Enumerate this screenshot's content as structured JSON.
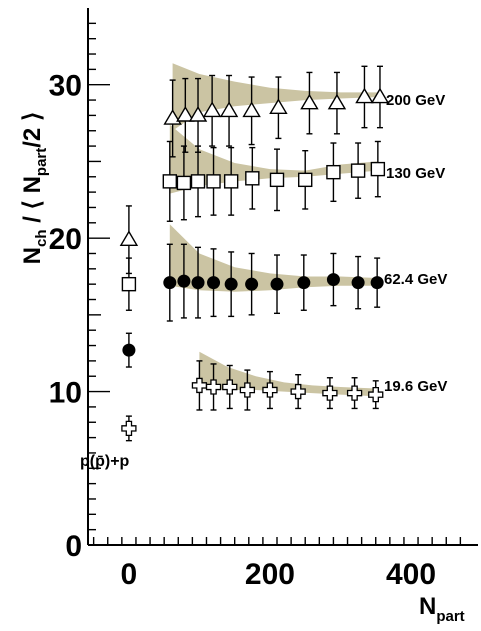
{
  "chart_data": {
    "type": "scatter",
    "xlabel": "N_part",
    "ylabel": "N_ch / ⟨ N_part/2 ⟩",
    "xlim": [
      -58,
      495
    ],
    "ylim": [
      0,
      35
    ],
    "x_ticks": [
      0,
      200,
      400
    ],
    "y_ticks": [
      0,
      10,
      20,
      30
    ],
    "grid": false,
    "band_color": "#cbc4a3",
    "series": [
      {
        "name": "200 GeV",
        "marker": "open-triangle",
        "x": [
          62,
          80,
          98,
          118,
          142,
          174,
          212,
          256,
          295,
          334,
          356
        ],
        "y": [
          27.8,
          28.0,
          28.0,
          28.3,
          28.3,
          28.3,
          28.5,
          28.8,
          28.8,
          29.2,
          29.2
        ],
        "yerr": [
          2.5,
          2.4,
          2.4,
          2.3,
          2.3,
          2.2,
          2.0,
          2.0,
          2.0,
          2.0,
          2.0
        ],
        "band_x": [
          62,
          100,
          150,
          200,
          250,
          300,
          356
        ],
        "band_low": [
          27.0,
          28.2,
          28.6,
          28.8,
          29.0,
          29.1,
          29.2
        ],
        "band_high": [
          31.4,
          30.7,
          30.2,
          29.8,
          29.6,
          29.5,
          29.5
        ]
      },
      {
        "name": "130 GeV",
        "marker": "open-square",
        "x": [
          58,
          78,
          98,
          120,
          145,
          175,
          210,
          250,
          290,
          325,
          353
        ],
        "y": [
          23.7,
          23.6,
          23.7,
          23.7,
          23.7,
          23.9,
          23.8,
          23.8,
          24.3,
          24.4,
          24.5
        ],
        "yerr": [
          2.6,
          2.4,
          2.3,
          2.2,
          2.2,
          2.0,
          2.0,
          1.9,
          1.9,
          1.8,
          1.8
        ],
        "band_x": [
          58,
          100,
          150,
          200,
          250,
          300,
          353
        ],
        "band_low": [
          22.9,
          23.4,
          23.7,
          23.9,
          24.0,
          24.2,
          24.4
        ],
        "band_high": [
          27.4,
          25.8,
          24.9,
          24.5,
          24.4,
          24.8,
          25.0
        ]
      },
      {
        "name": "62.4 GeV",
        "marker": "filled-circle",
        "x": [
          58,
          78,
          98,
          120,
          145,
          174,
          210,
          248,
          290,
          325,
          352
        ],
        "y": [
          17.1,
          17.2,
          17.1,
          17.1,
          17.0,
          17.0,
          17.0,
          17.1,
          17.3,
          17.1,
          17.1
        ],
        "yerr": [
          2.5,
          2.4,
          2.3,
          2.2,
          2.1,
          2.0,
          1.9,
          1.8,
          1.7,
          1.7,
          1.6
        ],
        "band_x": [
          58,
          100,
          150,
          200,
          250,
          300,
          352
        ],
        "band_low": [
          16.9,
          16.6,
          16.5,
          16.6,
          16.8,
          16.9,
          16.9
        ],
        "band_high": [
          20.9,
          19.0,
          18.1,
          17.7,
          17.5,
          17.5,
          17.4
        ]
      },
      {
        "name": "19.6 GeV",
        "marker": "open-cross",
        "x": [
          100,
          120,
          143,
          168,
          200,
          240,
          285,
          320,
          350
        ],
        "y": [
          10.4,
          10.3,
          10.3,
          10.1,
          10.1,
          10.0,
          9.9,
          9.9,
          9.8
        ],
        "yerr": [
          1.6,
          1.5,
          1.4,
          1.3,
          1.2,
          1.1,
          1.0,
          1.0,
          0.9
        ],
        "band_x": [
          100,
          140,
          180,
          220,
          260,
          300,
          350
        ],
        "band_low": [
          10.2,
          10.1,
          10.1,
          10.0,
          9.9,
          9.8,
          9.7
        ],
        "band_high": [
          12.6,
          11.6,
          11.0,
          10.6,
          10.4,
          10.3,
          10.2
        ]
      }
    ],
    "pp_points": [
      {
        "marker": "open-triangle",
        "x": 0,
        "y": 19.9,
        "yerr": 2.2
      },
      {
        "marker": "open-square",
        "x": 0,
        "y": 17.0,
        "yerr": 1.7
      },
      {
        "marker": "filled-circle",
        "x": 0,
        "y": 12.7,
        "yerr": 1.1
      },
      {
        "marker": "open-cross",
        "x": 0,
        "y": 7.6,
        "yerr": 0.8
      }
    ],
    "annotations": [
      "p(p̄)+p"
    ]
  }
}
